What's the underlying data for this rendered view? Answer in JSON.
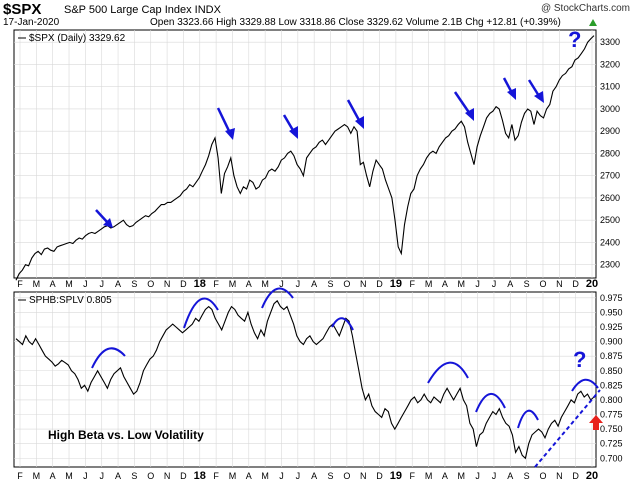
{
  "header": {
    "ticker": "$SPX",
    "name": "S&P 500 Large Cap Index INDX",
    "date": "17-Jan-2020",
    "quote": "Open 3323.66  High 3329.88  Low 3318.86  Close 3329.62  Volume 2.1B  Chg +12.81 (+0.39%)",
    "quote_icon": "triangle-up-icon",
    "brand": "@ StockCharts.com"
  },
  "colors": {
    "price_line": "#000000",
    "annotation": "#1515d8",
    "grid": "#d9d9d9",
    "red_arrow": "#e8201b"
  },
  "chart_data": [
    {
      "type": "line",
      "title": "$SPX (Daily) 3329.62",
      "legend_marker": "line-key-icon",
      "y_ticks": [
        2300,
        2400,
        2500,
        2600,
        2700,
        2800,
        2900,
        3000,
        3100,
        3200,
        3300
      ],
      "ylim": [
        2240,
        3355
      ],
      "series": [
        {
          "name": "$SPX",
          "values": [
            2230,
            2260,
            2275,
            2300,
            2295,
            2330,
            2350,
            2360,
            2345,
            2370,
            2375,
            2365,
            2360,
            2380,
            2385,
            2390,
            2395,
            2400,
            2395,
            2410,
            2420,
            2415,
            2430,
            2440,
            2445,
            2440,
            2450,
            2460,
            2470,
            2475,
            2465,
            2470,
            2480,
            2490,
            2500,
            2480,
            2470,
            2475,
            2490,
            2500,
            2510,
            2520,
            2515,
            2530,
            2540,
            2555,
            2570,
            2570,
            2580,
            2580,
            2590,
            2600,
            2610,
            2630,
            2640,
            2660,
            2650,
            2670,
            2690,
            2720,
            2750,
            2790,
            2840,
            2870,
            2780,
            2620,
            2710,
            2740,
            2780,
            2700,
            2650,
            2620,
            2650,
            2640,
            2680,
            2670,
            2640,
            2650,
            2680,
            2690,
            2720,
            2730,
            2720,
            2740,
            2770,
            2780,
            2800,
            2810,
            2790,
            2750,
            2730,
            2700,
            2780,
            2800,
            2820,
            2830,
            2850,
            2860,
            2840,
            2860,
            2880,
            2900,
            2910,
            2920,
            2930,
            2920,
            2890,
            2920,
            2900,
            2750,
            2760,
            2700,
            2650,
            2720,
            2770,
            2750,
            2730,
            2680,
            2640,
            2600,
            2500,
            2380,
            2350,
            2480,
            2560,
            2620,
            2640,
            2700,
            2730,
            2750,
            2780,
            2800,
            2810,
            2800,
            2830,
            2850,
            2870,
            2880,
            2900,
            2910,
            2930,
            2945,
            2920,
            2850,
            2800,
            2750,
            2830,
            2880,
            2920,
            2960,
            2980,
            2990,
            3010,
            3000,
            2950,
            2890,
            2870,
            2930,
            2860,
            2880,
            2940,
            2980,
            3000,
            2990,
            2930,
            2990,
            2970,
            2960,
            3000,
            3020,
            3080,
            3100,
            3130,
            3150,
            3160,
            3180,
            3190,
            3220,
            3230,
            3250,
            3270,
            3300,
            3316,
            3330
          ]
        }
      ],
      "x_ticks": [
        "F",
        "M",
        "A",
        "M",
        "J",
        "J",
        "A",
        "S",
        "O",
        "N",
        "D",
        "18",
        "F",
        "M",
        "A",
        "M",
        "J",
        "J",
        "A",
        "S",
        "O",
        "N",
        "D",
        "19",
        "F",
        "M",
        "A",
        "M",
        "J",
        "J",
        "A",
        "S",
        "O",
        "N",
        "D",
        "20"
      ],
      "annotations": [
        {
          "type": "blue-arrow",
          "label": "marker 1"
        },
        {
          "type": "blue-arrow",
          "label": "marker 2"
        },
        {
          "type": "blue-arrow",
          "label": "marker 3"
        },
        {
          "type": "blue-arrow",
          "label": "marker 4"
        },
        {
          "type": "blue-arrow",
          "label": "marker 5"
        },
        {
          "type": "blue-arrow",
          "label": "marker 6"
        },
        {
          "type": "blue-arrow",
          "label": "marker 7"
        },
        {
          "type": "question-mark",
          "text": "?"
        }
      ]
    },
    {
      "type": "line",
      "title": "SPHB:SPLV 0.805",
      "legend_marker": "line-key-icon",
      "y_ticks": [
        0.7,
        0.725,
        0.75,
        0.775,
        0.8,
        0.825,
        0.85,
        0.875,
        0.9,
        0.925,
        0.95,
        0.975
      ],
      "y_tick_labels": [
        "0.700",
        "0.725",
        "0.750",
        "0.775",
        "0.800",
        "0.825",
        "0.850",
        "0.875",
        "0.900",
        "0.925",
        "0.950",
        "0.975"
      ],
      "ylim": [
        0.685,
        0.985
      ],
      "series": [
        {
          "name": "SPHB:SPLV",
          "values": [
            0.905,
            0.9,
            0.895,
            0.91,
            0.9,
            0.895,
            0.905,
            0.895,
            0.885,
            0.875,
            0.87,
            0.865,
            0.858,
            0.862,
            0.868,
            0.864,
            0.86,
            0.85,
            0.845,
            0.835,
            0.82,
            0.825,
            0.815,
            0.83,
            0.84,
            0.85,
            0.84,
            0.83,
            0.82,
            0.835,
            0.845,
            0.85,
            0.855,
            0.84,
            0.83,
            0.82,
            0.81,
            0.815,
            0.83,
            0.85,
            0.86,
            0.87,
            0.875,
            0.885,
            0.9,
            0.91,
            0.92,
            0.925,
            0.93,
            0.925,
            0.92,
            0.915,
            0.92,
            0.925,
            0.93,
            0.94,
            0.935,
            0.945,
            0.955,
            0.96,
            0.955,
            0.94,
            0.93,
            0.92,
            0.935,
            0.95,
            0.96,
            0.955,
            0.945,
            0.94,
            0.935,
            0.95,
            0.93,
            0.915,
            0.905,
            0.92,
            0.91,
            0.935,
            0.95,
            0.965,
            0.97,
            0.96,
            0.955,
            0.96,
            0.945,
            0.93,
            0.91,
            0.9,
            0.895,
            0.905,
            0.91,
            0.9,
            0.895,
            0.9,
            0.905,
            0.915,
            0.925,
            0.93,
            0.92,
            0.91,
            0.925,
            0.94,
            0.935,
            0.91,
            0.88,
            0.85,
            0.82,
            0.8,
            0.81,
            0.79,
            0.78,
            0.775,
            0.77,
            0.785,
            0.78,
            0.76,
            0.75,
            0.76,
            0.77,
            0.78,
            0.79,
            0.8,
            0.805,
            0.795,
            0.8,
            0.81,
            0.8,
            0.795,
            0.805,
            0.8,
            0.795,
            0.81,
            0.82,
            0.81,
            0.8,
            0.81,
            0.82,
            0.8,
            0.79,
            0.76,
            0.75,
            0.72,
            0.74,
            0.745,
            0.76,
            0.77,
            0.78,
            0.775,
            0.785,
            0.77,
            0.76,
            0.755,
            0.74,
            0.71,
            0.72,
            0.705,
            0.7,
            0.725,
            0.74,
            0.745,
            0.75,
            0.745,
            0.735,
            0.75,
            0.76,
            0.765,
            0.755,
            0.77,
            0.78,
            0.79,
            0.8,
            0.795,
            0.81,
            0.815,
            0.805,
            0.81,
            0.8,
            0.805
          ]
        }
      ],
      "x_ticks": [
        "F",
        "M",
        "A",
        "M",
        "J",
        "J",
        "A",
        "S",
        "O",
        "N",
        "D",
        "18",
        "F",
        "M",
        "A",
        "M",
        "J",
        "J",
        "A",
        "S",
        "O",
        "N",
        "D",
        "19",
        "F",
        "M",
        "A",
        "M",
        "J",
        "J",
        "A",
        "S",
        "O",
        "N",
        "D",
        "20"
      ],
      "annotations": [
        {
          "type": "text",
          "text": "High Beta vs. Low Volatility"
        },
        {
          "type": "question-mark",
          "text": "?"
        },
        {
          "type": "blue-arc",
          "label": "rollover arcs"
        },
        {
          "type": "dashed-trendline",
          "label": "rising support"
        },
        {
          "type": "red-up-arrow",
          "label": "bounce"
        }
      ]
    }
  ]
}
